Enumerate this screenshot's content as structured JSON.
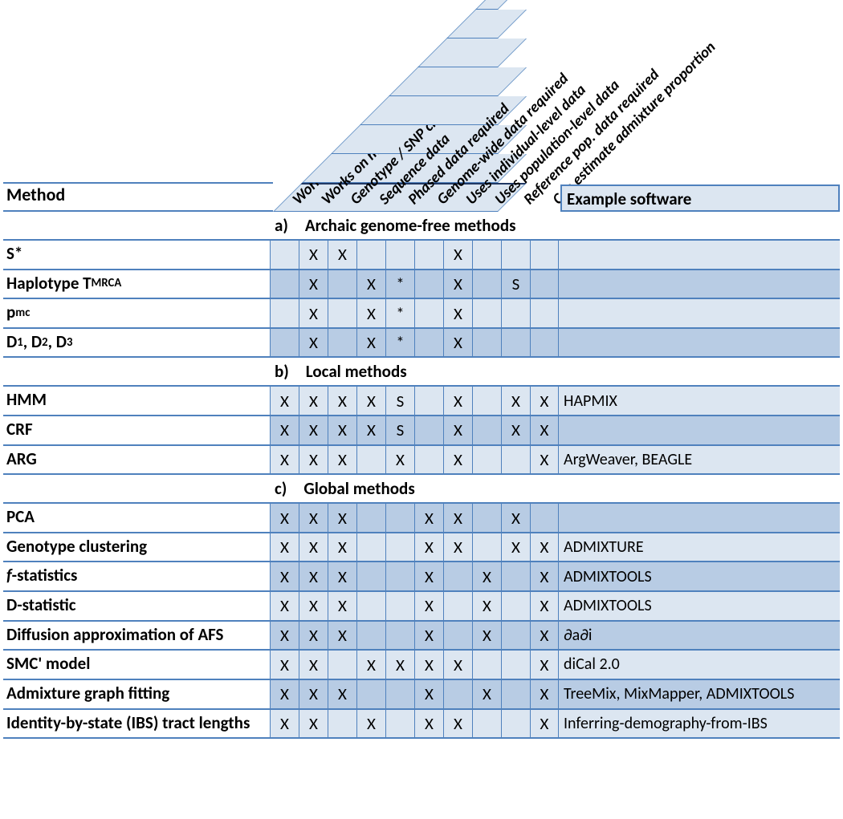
{
  "headers": {
    "method": "Method",
    "example_software": "Example software",
    "columns": [
      "Works on ancient DNA",
      "Works on modern DNA",
      "Genotype / SNP chip data",
      "Sequence data",
      "Phased data required",
      "Genome-wide data required",
      "Uses individual-level data",
      "Uses population-level data",
      "Reference pop. data required",
      "Can estimate admixture proportion"
    ]
  },
  "colors": {
    "light": "#dce6f1",
    "dark": "#b8cce4",
    "border": "#4f81bd"
  },
  "sections": [
    {
      "label": "a) Archaic genome-free methods",
      "rows": [
        {
          "name_html": "S*",
          "cells": [
            "",
            "X",
            "X",
            "",
            "",
            "",
            "X",
            "",
            "",
            ""
          ],
          "software": "",
          "alt": false
        },
        {
          "name_html": "Haplotype T<sub>MRCA</sub>",
          "cells": [
            "",
            "X",
            "",
            "X",
            "*",
            "",
            "X",
            "",
            "S",
            ""
          ],
          "software": "",
          "alt": true
        },
        {
          "name_html": "p<sub>mc</sub>",
          "cells": [
            "",
            "X",
            "",
            "X",
            "*",
            "",
            "X",
            "",
            "",
            ""
          ],
          "software": "",
          "alt": false
        },
        {
          "name_html": "D<sub>1</sub>, D<sub>2</sub>, D<sub>3</sub>",
          "cells": [
            "",
            "X",
            "",
            "X",
            "*",
            "",
            "X",
            "",
            "",
            ""
          ],
          "software": "",
          "alt": true
        }
      ]
    },
    {
      "label": "b) Local methods",
      "rows": [
        {
          "name_html": "HMM",
          "cells": [
            "X",
            "X",
            "X",
            "X",
            "S",
            "",
            "X",
            "",
            "X",
            "X"
          ],
          "software": "HAPMIX",
          "alt": false
        },
        {
          "name_html": "CRF",
          "cells": [
            "X",
            "X",
            "X",
            "X",
            "S",
            "",
            "X",
            "",
            "X",
            "X"
          ],
          "software": "",
          "alt": true
        },
        {
          "name_html": "ARG",
          "cells": [
            "X",
            "X",
            "X",
            "",
            "X",
            "",
            "X",
            "",
            "",
            "X"
          ],
          "software": "ArgWeaver, BEAGLE",
          "alt": false
        }
      ]
    },
    {
      "label": "c) Global methods",
      "rows": [
        {
          "name_html": "PCA",
          "cells": [
            "X",
            "X",
            "X",
            "",
            "",
            "X",
            "X",
            "",
            "X",
            ""
          ],
          "software": "",
          "alt": true
        },
        {
          "name_html": "Genotype clustering",
          "cells": [
            "X",
            "X",
            "X",
            "",
            "",
            "X",
            "X",
            "",
            "X",
            "X"
          ],
          "software": "ADMIXTURE",
          "alt": false
        },
        {
          "name_html": "<span class=\"ital\">f</span>-statistics",
          "cells": [
            "X",
            "X",
            "X",
            "",
            "",
            "X",
            "",
            "X",
            "",
            "X"
          ],
          "software": "ADMIXTOOLS",
          "alt": true
        },
        {
          "name_html": "D-statistic",
          "cells": [
            "X",
            "X",
            "X",
            "",
            "",
            "X",
            "",
            "X",
            "",
            "X"
          ],
          "software": "ADMIXTOOLS",
          "alt": false
        },
        {
          "name_html": "Diffusion approximation of AFS",
          "cells": [
            "X",
            "X",
            "X",
            "",
            "",
            "X",
            "",
            "X",
            "",
            "X"
          ],
          "software": "∂a∂i",
          "alt": true
        },
        {
          "name_html": "SMC' model",
          "cells": [
            "X",
            "X",
            "",
            "X",
            "X",
            "X",
            "X",
            "",
            "",
            "X"
          ],
          "software": "diCal 2.0",
          "alt": false
        },
        {
          "name_html": "Admixture graph fitting",
          "cells": [
            "X",
            "X",
            "X",
            "",
            "",
            "X",
            "",
            "X",
            "",
            "X"
          ],
          "software": "TreeMix, MixMapper, ADMIXTOOLS",
          "alt": true
        },
        {
          "name_html": "Identity-by-state (IBS) tract lengths",
          "cells": [
            "X",
            "X",
            "",
            "X",
            "",
            "X",
            "X",
            "",
            "",
            "X"
          ],
          "software": "Inferring-demography-from-IBS",
          "alt": false
        }
      ]
    }
  ]
}
